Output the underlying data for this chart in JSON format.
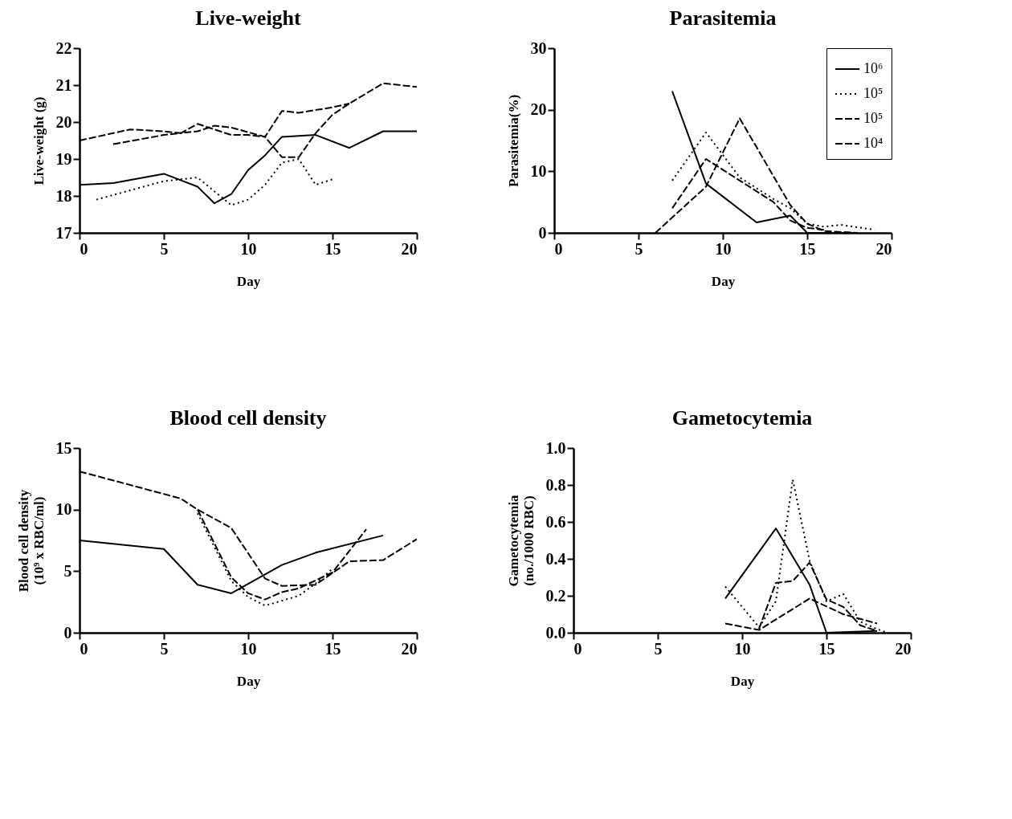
{
  "chart_data": [
    {
      "type": "line",
      "title": "Live-weight",
      "xlabel": "Day",
      "ylabel": "Live-weight (g)",
      "xlim": [
        0,
        20
      ],
      "ylim": [
        17,
        22
      ],
      "xticks": [
        0,
        5,
        10,
        15,
        20
      ],
      "yticks": [
        17,
        18,
        19,
        20,
        21,
        22
      ],
      "grid": false,
      "legend": false,
      "series": [
        {
          "color": "#000000",
          "line_style": "solid",
          "x": [
            0,
            2,
            5,
            7,
            8,
            9,
            10,
            11,
            12,
            14,
            16,
            18,
            20
          ],
          "values": [
            18.3,
            18.35,
            18.6,
            18.25,
            17.8,
            18.05,
            18.7,
            19.1,
            19.6,
            19.65,
            19.3,
            19.75,
            19.75
          ]
        },
        {
          "color": "#000000",
          "line_style": "dotted",
          "x": [
            1,
            5,
            7,
            9,
            10,
            11,
            12,
            13,
            14,
            15
          ],
          "values": [
            17.9,
            18.4,
            18.5,
            17.75,
            17.9,
            18.3,
            18.9,
            19.0,
            18.3,
            18.45
          ]
        },
        {
          "color": "#000000",
          "line_style": "dashed",
          "x": [
            2,
            5,
            6,
            7,
            8,
            9,
            10,
            11,
            12,
            13,
            15,
            16
          ],
          "values": [
            19.4,
            19.65,
            19.7,
            19.95,
            19.8,
            19.65,
            19.65,
            19.6,
            20.3,
            20.25,
            20.4,
            20.5
          ]
        },
        {
          "color": "#000000",
          "line_style": "dashed",
          "x": [
            0,
            3,
            5,
            6,
            7,
            8,
            9,
            11,
            12,
            13,
            14,
            15,
            16,
            18,
            20
          ],
          "values": [
            19.5,
            19.8,
            19.75,
            19.7,
            19.75,
            19.9,
            19.85,
            19.6,
            19.05,
            19.05,
            19.7,
            20.2,
            20.5,
            21.05,
            20.95
          ]
        }
      ]
    },
    {
      "type": "line",
      "title": "Parasitemia",
      "xlabel": "Day",
      "ylabel": "Parasitemia(%)",
      "xlim": [
        0,
        20
      ],
      "ylim": [
        0,
        30
      ],
      "xticks": [
        0,
        5,
        10,
        15,
        20
      ],
      "yticks": [
        0,
        10,
        20,
        30
      ],
      "grid": false,
      "legend": "top right",
      "series": [
        {
          "name": "10⁶",
          "color": "#000000",
          "line_style": "solid",
          "x": [
            7,
            9,
            12,
            14,
            15,
            18
          ],
          "values": [
            23,
            8,
            1.7,
            2.8,
            0,
            0
          ]
        },
        {
          "name": "10⁵",
          "color": "#000000",
          "line_style": "dotted",
          "x": [
            7,
            9,
            11,
            13,
            14,
            15,
            16,
            17,
            19
          ],
          "values": [
            8.5,
            16.3,
            9,
            5.5,
            4,
            1.5,
            1,
            1.3,
            0.5
          ]
        },
        {
          "name": "10⁵",
          "color": "#000000",
          "line_style": "dashed",
          "x": [
            7,
            8,
            9,
            11,
            13,
            14,
            15,
            16
          ],
          "values": [
            4,
            8,
            12,
            8.5,
            5,
            2,
            0.8,
            0.5
          ]
        },
        {
          "name": "10⁴",
          "color": "#000000",
          "line_style": "dashed",
          "x": [
            6,
            9,
            11,
            14,
            15,
            16,
            18
          ],
          "values": [
            0,
            7.5,
            18.6,
            4.5,
            1.5,
            0.3,
            0
          ]
        }
      ]
    },
    {
      "type": "line",
      "title": "Blood cell density",
      "xlabel": "Day",
      "ylabel": "Blood cell density\n(10⁹ x RBC/ml)",
      "xlim": [
        0,
        20
      ],
      "ylim": [
        0,
        15
      ],
      "xticks": [
        0,
        5,
        10,
        15,
        20
      ],
      "yticks": [
        0,
        5,
        10,
        15
      ],
      "grid": false,
      "legend": false,
      "series": [
        {
          "color": "#000000",
          "line_style": "solid",
          "x": [
            0,
            5,
            7,
            9,
            12,
            14,
            18
          ],
          "values": [
            7.5,
            6.8,
            3.9,
            3.2,
            5.5,
            6.5,
            7.9
          ]
        },
        {
          "color": "#000000",
          "line_style": "dotted",
          "x": [
            7,
            9,
            10,
            11,
            12,
            13,
            14,
            15
          ],
          "values": [
            9.7,
            4.2,
            2.9,
            2.2,
            2.6,
            3.0,
            4.0,
            5.2
          ]
        },
        {
          "color": "#000000",
          "line_style": "dashed",
          "x": [
            7,
            9,
            10,
            11,
            12,
            13,
            15,
            17
          ],
          "values": [
            10,
            4.5,
            3.2,
            2.7,
            3.3,
            3.6,
            4.9,
            8.4
          ]
        },
        {
          "color": "#000000",
          "line_style": "dashed",
          "x": [
            0,
            6,
            7,
            9,
            11,
            12,
            14,
            16,
            18,
            20
          ],
          "values": [
            13.1,
            10.9,
            10.0,
            8.5,
            4.4,
            3.8,
            3.9,
            5.8,
            5.9,
            7.6
          ]
        }
      ]
    },
    {
      "type": "line",
      "title": "Gametocytemia",
      "xlabel": "Day",
      "ylabel": "Gametocytemia\n(no./1000 RBC)",
      "xlim": [
        0,
        20
      ],
      "ylim": [
        0,
        1
      ],
      "xticks": [
        0,
        5,
        10,
        15,
        20
      ],
      "yticks": [
        {
          "value": 0,
          "label": "0.0"
        },
        0.2,
        0.4,
        0.6,
        0.8,
        {
          "value": 1,
          "label": "1.0"
        }
      ],
      "grid": false,
      "legend": false,
      "series": [
        {
          "color": "#000000",
          "line_style": "solid",
          "x": [
            9,
            12,
            14,
            15,
            18
          ],
          "values": [
            0.185,
            0.565,
            0.26,
            0,
            0.01
          ]
        },
        {
          "color": "#000000",
          "line_style": "dotted",
          "x": [
            9,
            11,
            12,
            13,
            14,
            15,
            16,
            17,
            18,
            18.6
          ],
          "values": [
            0.25,
            0.03,
            0.17,
            0.83,
            0.39,
            0.17,
            0.21,
            0.06,
            0.02,
            0
          ]
        },
        {
          "color": "#000000",
          "line_style": "dashed",
          "x": [
            11,
            12,
            13,
            14,
            15,
            16,
            17,
            18
          ],
          "values": [
            0.02,
            0.27,
            0.28,
            0.38,
            0.18,
            0.14,
            0.04,
            0.01
          ]
        },
        {
          "color": "#000000",
          "line_style": "dashed",
          "x": [
            9,
            11,
            14,
            16,
            18
          ],
          "values": [
            0.05,
            0.015,
            0.185,
            0.1,
            0.05
          ]
        }
      ]
    }
  ]
}
